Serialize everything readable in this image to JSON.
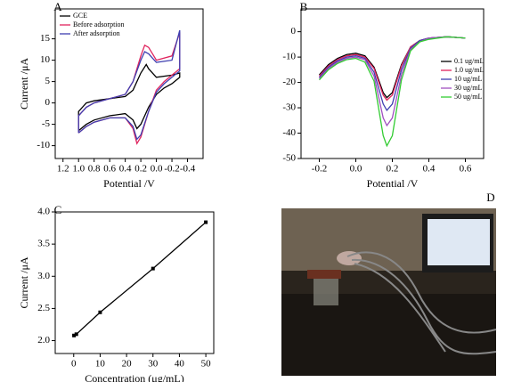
{
  "chart_data": [
    {
      "panel": "A",
      "type": "line",
      "xlabel": "Potential /V",
      "ylabel": "Current /μA",
      "xlim": [
        1.3,
        -0.6
      ],
      "ylim": [
        -13,
        22
      ],
      "xticks": [
        1.2,
        {
          "value": 1,
          "label": "1.0"
        },
        0.8,
        0.6,
        0.4,
        0.2,
        {
          "value": 0,
          "label": "0.0"
        },
        -0.2,
        -0.4
      ],
      "yticks": [
        -10,
        -5,
        0,
        5,
        10,
        15
      ],
      "legend": "upper left",
      "series": [
        {
          "name": "GCE",
          "color": "#000000",
          "x": [
            1.0,
            0.9,
            0.8,
            0.6,
            0.4,
            0.3,
            0.25,
            0.2,
            0.1,
            0,
            -0.1,
            -0.2,
            -0.3,
            -0.3,
            -0.2,
            0,
            0.1,
            0.13,
            0.2,
            0.3,
            0.4,
            0.6,
            0.8,
            0.9,
            1.0,
            1.0
          ],
          "values": [
            -6.5,
            -5,
            -4,
            -3,
            -2.5,
            -4,
            -6,
            -5,
            -1,
            2,
            3.5,
            4.5,
            6,
            7,
            6.5,
            6,
            8,
            9,
            7,
            3,
            1.5,
            1,
            0.5,
            0,
            -2,
            -6.5
          ]
        },
        {
          "name": "Before adsorption",
          "color": "#e0245e",
          "x": [
            1.0,
            0.9,
            0.8,
            0.6,
            0.4,
            0.3,
            0.25,
            0.2,
            0.1,
            0,
            -0.1,
            -0.2,
            -0.3,
            -0.3,
            -0.2,
            0,
            0.1,
            0.15,
            0.2,
            0.3,
            0.4,
            0.6,
            0.8,
            0.9,
            1.0,
            1.0
          ],
          "values": [
            -7,
            -5.5,
            -4.5,
            -3.5,
            -3.5,
            -6,
            -9.5,
            -8,
            -2,
            3,
            5,
            6.5,
            8,
            16.5,
            11,
            10,
            13,
            13.5,
            11,
            5,
            2,
            1,
            0,
            -1,
            -3,
            -7
          ]
        },
        {
          "name": "After adsorption",
          "color": "#3f3fb0",
          "x": [
            1.0,
            0.9,
            0.8,
            0.6,
            0.4,
            0.3,
            0.25,
            0.2,
            0.1,
            0,
            -0.1,
            -0.2,
            -0.3,
            -0.3,
            -0.2,
            0,
            0.1,
            0.15,
            0.2,
            0.3,
            0.4,
            0.6,
            0.8,
            0.9,
            1.0,
            1.0
          ],
          "values": [
            -7,
            -5.5,
            -4.5,
            -3.5,
            -3.5,
            -5.5,
            -8.5,
            -7.5,
            -2,
            2.5,
            4.5,
            6,
            7.5,
            17,
            10,
            9.5,
            11.5,
            12,
            10,
            5,
            2,
            1,
            0,
            -1,
            -3,
            -7
          ]
        }
      ]
    },
    {
      "panel": "B",
      "type": "line",
      "xlabel": "Potential /V",
      "xlim": [
        -0.3,
        0.7
      ],
      "ylim": [
        -50,
        9
      ],
      "xticks": [
        -0.2,
        {
          "value": 0,
          "label": "0.0"
        },
        0.2,
        0.4,
        0.6
      ],
      "yticks": [
        -50,
        -40,
        -30,
        -20,
        -10,
        0
      ],
      "legend": "center right",
      "series": [
        {
          "name": "0.1 ug/mL",
          "color": "#000000",
          "x": [
            -0.2,
            -0.15,
            -0.1,
            -0.05,
            0,
            0.05,
            0.1,
            0.15,
            0.17,
            0.2,
            0.25,
            0.3,
            0.35,
            0.4,
            0.5,
            0.6
          ],
          "values": [
            -17,
            -13,
            -10.5,
            -9,
            -8.5,
            -9.5,
            -14,
            -24,
            -26,
            -24,
            -13,
            -6,
            -3.5,
            -2.5,
            -2,
            -2.5
          ]
        },
        {
          "name": "1.0 ug/mL",
          "color": "#e0245e",
          "x": [
            -0.2,
            -0.15,
            -0.1,
            -0.05,
            0,
            0.05,
            0.1,
            0.15,
            0.17,
            0.2,
            0.25,
            0.3,
            0.35,
            0.4,
            0.5,
            0.6
          ],
          "values": [
            -17.5,
            -13.5,
            -11,
            -9.5,
            -9,
            -10,
            -14.5,
            -25,
            -27,
            -25,
            -13.5,
            -6,
            -3.5,
            -2.5,
            -2,
            -2.5
          ]
        },
        {
          "name": "10 ug/mL",
          "color": "#3f3fb0",
          "x": [
            -0.2,
            -0.15,
            -0.1,
            -0.05,
            0,
            0.05,
            0.1,
            0.15,
            0.17,
            0.2,
            0.25,
            0.3,
            0.35,
            0.4,
            0.5,
            0.6
          ],
          "values": [
            -18,
            -14,
            -11.5,
            -10,
            -9.5,
            -10.5,
            -16,
            -28.5,
            -31,
            -28.5,
            -15,
            -6.5,
            -3.5,
            -2.5,
            -2,
            -2.5
          ]
        },
        {
          "name": "30 ug/mL",
          "color": "#a050c0",
          "x": [
            -0.2,
            -0.15,
            -0.1,
            -0.05,
            0,
            0.05,
            0.1,
            0.15,
            0.17,
            0.2,
            0.25,
            0.3,
            0.35,
            0.4,
            0.5,
            0.6
          ],
          "values": [
            -18.5,
            -14.5,
            -12,
            -10.5,
            -10,
            -11,
            -17.5,
            -34,
            -37,
            -34,
            -17,
            -7,
            -4,
            -2.5,
            -2,
            -2.5
          ]
        },
        {
          "name": "50 ug/mL",
          "color": "#33cc33",
          "x": [
            -0.2,
            -0.15,
            -0.1,
            -0.05,
            0,
            0.05,
            0.1,
            0.15,
            0.17,
            0.2,
            0.25,
            0.3,
            0.35,
            0.4,
            0.5,
            0.6
          ],
          "values": [
            -19,
            -15,
            -12.5,
            -11,
            -10.5,
            -12,
            -19.5,
            -41,
            -45,
            -41,
            -19,
            -7.5,
            -4,
            -3,
            -2,
            -2.5
          ]
        }
      ]
    },
    {
      "panel": "C",
      "type": "line",
      "markers": true,
      "xlabel": "Concentration (μg/mL)",
      "ylabel": "Current /μA",
      "xlim": [
        -7,
        53
      ],
      "ylim": [
        1.8,
        4.0
      ],
      "xticks": [
        0,
        10,
        20,
        30,
        40,
        50
      ],
      "yticks": [
        {
          "value": 2,
          "label": "2.0"
        },
        2.5,
        {
          "value": 3,
          "label": "3.0"
        },
        3.5,
        {
          "value": 4,
          "label": "4.0"
        }
      ],
      "series": [
        {
          "color": "#000000",
          "x": [
            0.1,
            1,
            10,
            30,
            50
          ],
          "values": [
            2.08,
            2.1,
            2.44,
            3.12,
            3.84
          ]
        }
      ]
    },
    {
      "panel": "D",
      "type": "image"
    }
  ]
}
